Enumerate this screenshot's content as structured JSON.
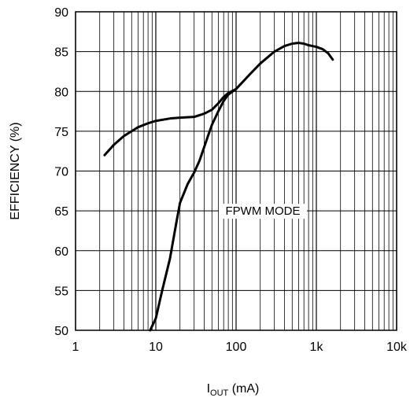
{
  "chart_data": {
    "type": "line",
    "x_scale": "log",
    "xlim": [
      1,
      10000
    ],
    "ylim": [
      50,
      90
    ],
    "x_ticks": [
      {
        "value": 1,
        "label": "1"
      },
      {
        "value": 10,
        "label": "10"
      },
      {
        "value": 100,
        "label": "100"
      },
      {
        "value": 1000,
        "label": "1k"
      },
      {
        "value": 10000,
        "label": "10k"
      }
    ],
    "y_ticks": [
      50,
      55,
      60,
      65,
      70,
      75,
      80,
      85,
      90
    ],
    "grid": true,
    "ylabel": "EFFICIENCY (%)",
    "xlabel": {
      "main": "I",
      "sub": "OUT",
      "unit": " (mA)"
    },
    "annotations": [
      {
        "text": "FPWM MODE",
        "x": 100,
        "y": 65
      }
    ],
    "series": [
      {
        "points": [
          [
            2.3,
            72
          ],
          [
            3,
            73.3
          ],
          [
            4,
            74.4
          ],
          [
            5,
            75
          ],
          [
            6,
            75.5
          ],
          [
            8,
            76
          ],
          [
            10,
            76.3
          ],
          [
            15,
            76.6
          ],
          [
            20,
            76.7
          ],
          [
            30,
            76.8
          ],
          [
            40,
            77.2
          ],
          [
            50,
            77.7
          ],
          [
            60,
            78.5
          ],
          [
            70,
            79.3
          ],
          [
            80,
            79.8
          ],
          [
            100,
            80.3
          ],
          [
            150,
            82.2
          ],
          [
            200,
            83.5
          ],
          [
            300,
            85
          ],
          [
            400,
            85.7
          ],
          [
            500,
            86
          ],
          [
            600,
            86.1
          ],
          [
            700,
            86
          ],
          [
            800,
            85.8
          ],
          [
            1000,
            85.6
          ],
          [
            1200,
            85.3
          ],
          [
            1400,
            84.8
          ],
          [
            1600,
            84
          ]
        ]
      },
      {
        "points": [
          [
            8.5,
            50
          ],
          [
            10,
            51.5
          ],
          [
            12,
            55
          ],
          [
            15,
            59
          ],
          [
            18,
            63.5
          ],
          [
            20,
            66
          ],
          [
            25,
            68.4
          ],
          [
            30,
            69.8
          ],
          [
            35,
            71.3
          ],
          [
            40,
            73
          ],
          [
            45,
            74.5
          ],
          [
            50,
            75.8
          ],
          [
            60,
            77.5
          ],
          [
            70,
            78.8
          ],
          [
            80,
            79.6
          ],
          [
            100,
            80.3
          ]
        ]
      }
    ]
  }
}
